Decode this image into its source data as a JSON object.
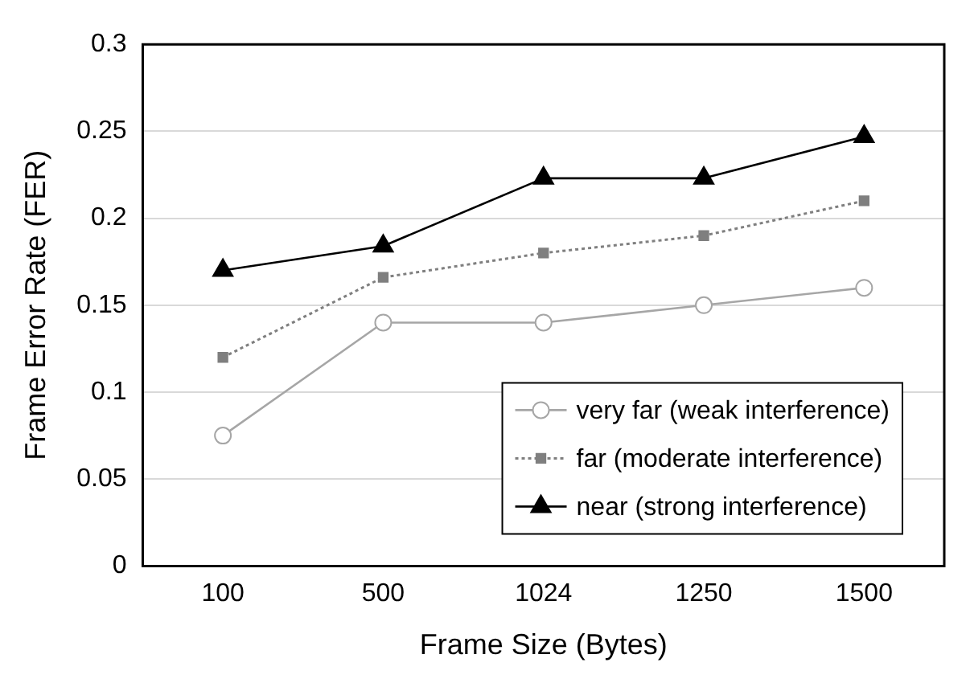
{
  "chart_data": {
    "type": "line",
    "xlabel": "Frame Size (Bytes)",
    "ylabel": "Frame Error Rate (FER)",
    "categories": [
      "100",
      "500",
      "1024",
      "1250",
      "1500"
    ],
    "series": [
      {
        "name": "very far (weak interference)",
        "color": "#a6a6a6",
        "marker": "circle",
        "line_style": "solid",
        "values": [
          0.075,
          0.14,
          0.14,
          0.15,
          0.16
        ]
      },
      {
        "name": "far (moderate interference)",
        "color": "#7f7f7f",
        "marker": "square",
        "line_style": "dotted",
        "values": [
          0.12,
          0.166,
          0.18,
          0.19,
          0.21
        ]
      },
      {
        "name": "near (strong interference)",
        "color": "#000000",
        "marker": "triangle",
        "line_style": "solid",
        "values": [
          0.17,
          0.184,
          0.223,
          0.223,
          0.247
        ]
      }
    ],
    "ylim": [
      0,
      0.3
    ],
    "yticks": [
      0,
      0.05,
      0.1,
      0.15,
      0.2,
      0.25,
      0.3
    ],
    "grid": "y",
    "legend": "bottom right"
  }
}
